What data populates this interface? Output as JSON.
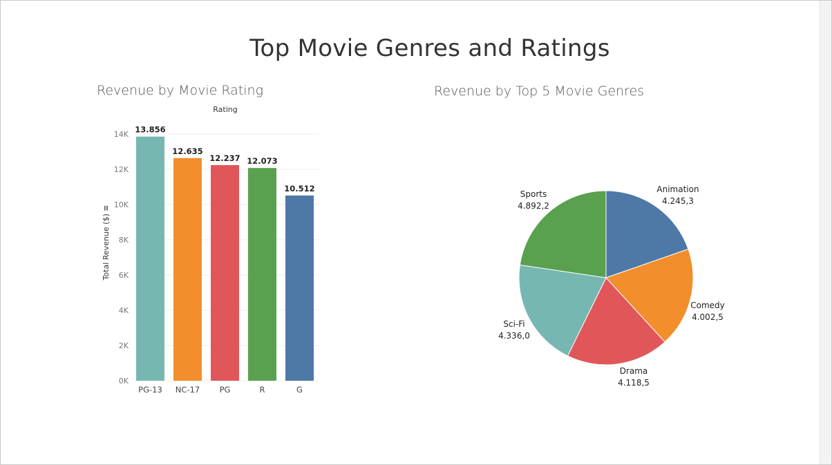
{
  "dashboard_title": "Top Movie Genres and Ratings",
  "bar_sheet_title": "Revenue by Movie Rating",
  "pie_sheet_title": "Revenue by Top 5 Movie Genres",
  "chart_data": [
    {
      "type": "bar",
      "header": "Rating",
      "ylabel": "Total Revenue ($) ≡",
      "ylim": [
        0,
        14000
      ],
      "yticks": [
        "0K",
        "2K",
        "4K",
        "6K",
        "8K",
        "10K",
        "12K",
        "14K"
      ],
      "grid": true,
      "categories": [
        "PG-13",
        "NC-17",
        "PG",
        "R",
        "G"
      ],
      "values": [
        13856,
        12635,
        12237,
        12073,
        10512
      ],
      "data_labels": [
        "13.856",
        "12.635",
        "12.237",
        "12.073",
        "10.512"
      ],
      "colors": [
        "#76b7b2",
        "#f28e2b",
        "#e15759",
        "#59a14f",
        "#4e79a7"
      ]
    },
    {
      "type": "pie",
      "slices": [
        {
          "label": "Animation",
          "value": 4245.3,
          "value_label": "4.245,3",
          "color": "#4e79a7"
        },
        {
          "label": "Comedy",
          "value": 4002.5,
          "value_label": "4.002,5",
          "color": "#f28e2b"
        },
        {
          "label": "Drama",
          "value": 4118.5,
          "value_label": "4.118,5",
          "color": "#e15759"
        },
        {
          "label": "Sci-Fi",
          "value": 4336.0,
          "value_label": "4.336,0",
          "color": "#76b7b2"
        },
        {
          "label": "Sports",
          "value": 4892.2,
          "value_label": "4.892,2",
          "color": "#59a14f"
        }
      ]
    }
  ]
}
